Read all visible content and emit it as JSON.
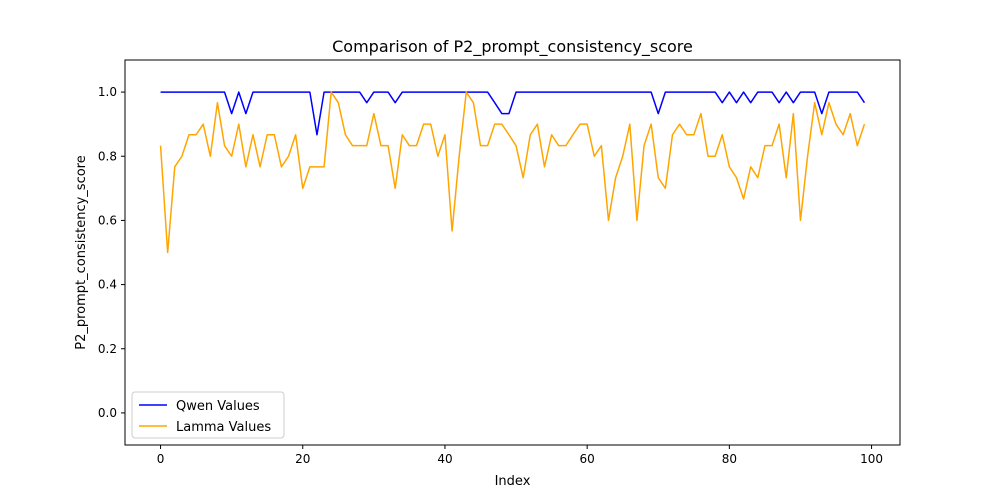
{
  "chart_data": {
    "type": "line",
    "title": "Comparison of P2_prompt_consistency_score",
    "xlabel": "Index",
    "ylabel": "P2_prompt_consistency_score",
    "xlim": [
      -5,
      104
    ],
    "ylim": [
      -0.1,
      1.1
    ],
    "xticks": [
      0,
      20,
      40,
      60,
      80,
      100
    ],
    "yticks": [
      0.0,
      0.2,
      0.4,
      0.6,
      0.8,
      1.0
    ],
    "xtick_labels": [
      "0",
      "20",
      "40",
      "60",
      "80",
      "100"
    ],
    "ytick_labels": [
      "0.0",
      "0.2",
      "0.4",
      "0.6",
      "0.8",
      "1.0"
    ],
    "grid": false,
    "legend_position": "lower-left",
    "series": [
      {
        "name": "Qwen Values",
        "color": "#0000ff",
        "x": [
          0,
          1,
          2,
          3,
          4,
          5,
          6,
          7,
          8,
          9,
          10,
          11,
          12,
          13,
          14,
          15,
          16,
          17,
          18,
          19,
          20,
          21,
          22,
          23,
          24,
          25,
          26,
          27,
          28,
          29,
          30,
          31,
          32,
          33,
          34,
          35,
          36,
          37,
          38,
          39,
          40,
          41,
          42,
          43,
          44,
          45,
          46,
          47,
          48,
          49,
          50,
          51,
          52,
          53,
          54,
          55,
          56,
          57,
          58,
          59,
          60,
          61,
          62,
          63,
          64,
          65,
          66,
          67,
          68,
          69,
          70,
          71,
          72,
          73,
          74,
          75,
          76,
          77,
          78,
          79,
          80,
          81,
          82,
          83,
          84,
          85,
          86,
          87,
          88,
          89,
          90,
          91,
          92,
          93,
          94,
          95,
          96,
          97,
          98,
          99
        ],
        "values": [
          1.0,
          1.0,
          1.0,
          1.0,
          1.0,
          1.0,
          1.0,
          1.0,
          1.0,
          1.0,
          0.933,
          1.0,
          0.933,
          1.0,
          1.0,
          1.0,
          1.0,
          1.0,
          1.0,
          1.0,
          1.0,
          1.0,
          0.867,
          1.0,
          1.0,
          1.0,
          1.0,
          1.0,
          1.0,
          0.967,
          1.0,
          1.0,
          1.0,
          0.967,
          1.0,
          1.0,
          1.0,
          1.0,
          1.0,
          1.0,
          1.0,
          1.0,
          1.0,
          1.0,
          1.0,
          1.0,
          1.0,
          0.967,
          0.933,
          0.933,
          1.0,
          1.0,
          1.0,
          1.0,
          1.0,
          1.0,
          1.0,
          1.0,
          1.0,
          1.0,
          1.0,
          1.0,
          1.0,
          1.0,
          1.0,
          1.0,
          1.0,
          1.0,
          1.0,
          1.0,
          0.933,
          1.0,
          1.0,
          1.0,
          1.0,
          1.0,
          1.0,
          1.0,
          1.0,
          0.967,
          1.0,
          0.967,
          1.0,
          0.967,
          1.0,
          1.0,
          1.0,
          0.967,
          1.0,
          0.967,
          1.0,
          1.0,
          1.0,
          0.933,
          1.0,
          1.0,
          1.0,
          1.0,
          1.0,
          0.967
        ]
      },
      {
        "name": "Lamma Values",
        "color": "#ffa500",
        "x": [
          0,
          1,
          2,
          3,
          4,
          5,
          6,
          7,
          8,
          9,
          10,
          11,
          12,
          13,
          14,
          15,
          16,
          17,
          18,
          19,
          20,
          21,
          22,
          23,
          24,
          25,
          26,
          27,
          28,
          29,
          30,
          31,
          32,
          33,
          34,
          35,
          36,
          37,
          38,
          39,
          40,
          41,
          42,
          43,
          44,
          45,
          46,
          47,
          48,
          49,
          50,
          51,
          52,
          53,
          54,
          55,
          56,
          57,
          58,
          59,
          60,
          61,
          62,
          63,
          64,
          65,
          66,
          67,
          68,
          69,
          70,
          71,
          72,
          73,
          74,
          75,
          76,
          77,
          78,
          79,
          80,
          81,
          82,
          83,
          84,
          85,
          86,
          87,
          88,
          89,
          90,
          91,
          92,
          93,
          94,
          95,
          96,
          97,
          98,
          99
        ],
        "values": [
          0.833,
          0.5,
          0.767,
          0.8,
          0.867,
          0.867,
          0.9,
          0.8,
          0.967,
          0.833,
          0.8,
          0.9,
          0.767,
          0.867,
          0.767,
          0.867,
          0.867,
          0.767,
          0.8,
          0.867,
          0.7,
          0.767,
          0.767,
          0.767,
          1.0,
          0.967,
          0.867,
          0.833,
          0.833,
          0.833,
          0.933,
          0.833,
          0.833,
          0.7,
          0.867,
          0.833,
          0.833,
          0.9,
          0.9,
          0.8,
          0.867,
          0.567,
          0.8,
          1.0,
          0.967,
          0.833,
          0.833,
          0.9,
          0.9,
          0.867,
          0.833,
          0.733,
          0.867,
          0.9,
          0.767,
          0.867,
          0.833,
          0.833,
          0.867,
          0.9,
          0.9,
          0.8,
          0.833,
          0.6,
          0.733,
          0.8,
          0.9,
          0.6,
          0.833,
          0.9,
          0.733,
          0.7,
          0.867,
          0.9,
          0.867,
          0.867,
          0.933,
          0.8,
          0.8,
          0.867,
          0.767,
          0.733,
          0.667,
          0.767,
          0.733,
          0.833,
          0.833,
          0.9,
          0.733,
          0.933,
          0.6,
          0.8,
          0.967,
          0.867,
          0.967,
          0.9,
          0.867,
          0.933,
          0.833,
          0.9
        ]
      }
    ]
  }
}
